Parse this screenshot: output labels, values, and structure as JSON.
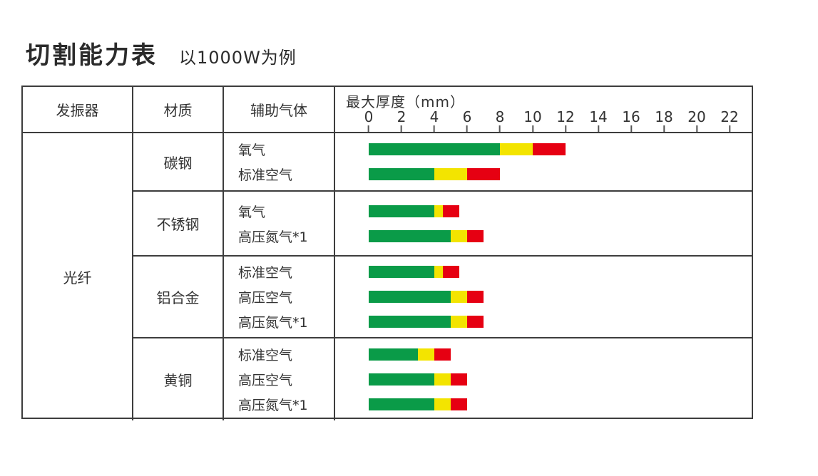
{
  "page": {
    "title": "切割能力表",
    "subtitle": "以1000W为例"
  },
  "colors": {
    "green": "#0a9b48",
    "yellow": "#f3e400",
    "red": "#e60012",
    "line": "#3d3d3d"
  },
  "table": {
    "headers": {
      "oscillator": "发振器",
      "material": "材质",
      "assist_gas": "辅助气体",
      "axis_title": "最大厚度（mm）"
    },
    "oscillator_value": "光纤"
  },
  "chart_data": {
    "type": "bar",
    "title": "切割能力表 以1000W为例",
    "xlabel": "最大厚度（mm）",
    "xlim": [
      0,
      22
    ],
    "x_ticks": [
      0,
      2,
      4,
      6,
      8,
      10,
      12,
      14,
      16,
      18,
      20,
      22
    ],
    "grid": false,
    "legend": "none",
    "segment_order": [
      "green",
      "yellow",
      "red"
    ],
    "materials": [
      {
        "name": "碳钢",
        "rows": [
          {
            "gas": "氧气",
            "green_end": 8,
            "yellow_end": 10,
            "red_end": 12
          },
          {
            "gas": "标准空气",
            "green_end": 4,
            "yellow_end": 6,
            "red_end": 8
          }
        ]
      },
      {
        "name": "不锈钢",
        "rows": [
          {
            "gas": "氧气",
            "green_end": 4,
            "yellow_end": 4.5,
            "red_end": 5.5
          },
          {
            "gas": "高压氮气*1",
            "green_end": 5,
            "yellow_end": 6,
            "red_end": 7
          }
        ]
      },
      {
        "name": "铝合金",
        "rows": [
          {
            "gas": "标准空气",
            "green_end": 4,
            "yellow_end": 4.5,
            "red_end": 5.5
          },
          {
            "gas": "高压空气",
            "green_end": 5,
            "yellow_end": 6,
            "red_end": 7
          },
          {
            "gas": "高压氮气*1",
            "green_end": 5,
            "yellow_end": 6,
            "red_end": 7
          }
        ]
      },
      {
        "name": "黄铜",
        "rows": [
          {
            "gas": "标准空气",
            "green_end": 3,
            "yellow_end": 4,
            "red_end": 5
          },
          {
            "gas": "高压空气",
            "green_end": 4,
            "yellow_end": 5,
            "red_end": 6
          },
          {
            "gas": "高压氮气*1",
            "green_end": 4,
            "yellow_end": 5,
            "red_end": 6
          }
        ]
      }
    ]
  }
}
